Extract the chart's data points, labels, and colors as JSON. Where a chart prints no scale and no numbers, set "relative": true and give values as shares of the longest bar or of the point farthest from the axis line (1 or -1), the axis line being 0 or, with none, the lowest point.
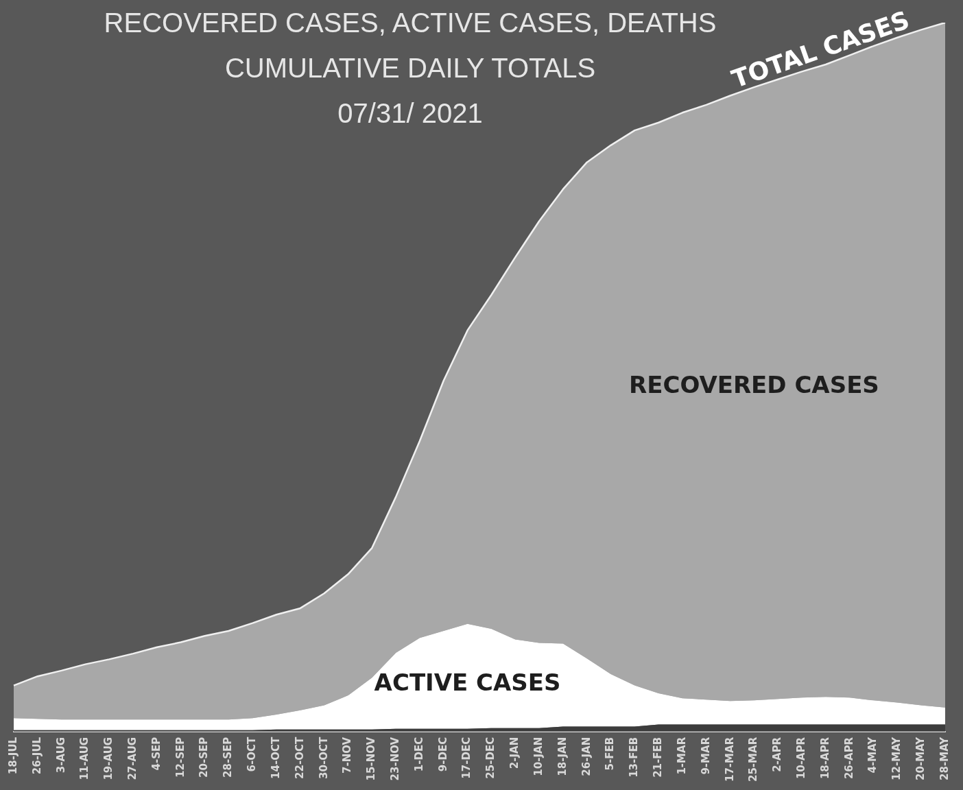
{
  "chart_data": {
    "type": "area",
    "title": "RECOVERED CASES, ACTIVE CASES, DEATHS",
    "subtitle": "CUMULATIVE DAILY TOTALS\n07/31/ 2021",
    "relative": true,
    "stacked": true,
    "grid": false,
    "legend": false,
    "categories": [
      "18-JUL",
      "26-JUL",
      "3-AUG",
      "11-AUG",
      "19-AUG",
      "27-AUG",
      "4-SEP",
      "12-SEP",
      "20-SEP",
      "28-SEP",
      "6-OCT",
      "14-OCT",
      "22-OCT",
      "30-OCT",
      "7-NOV",
      "15-NOV",
      "23-NOV",
      "1-DEC",
      "9-DEC",
      "17-DEC",
      "25-DEC",
      "2-JAN",
      "10-JAN",
      "18-JAN",
      "26-JAN",
      "5-FEB",
      "13-FEB",
      "21-FEB",
      "1-MAR",
      "9-MAR",
      "17-MAR",
      "25-MAR",
      "2-APR",
      "10-APR",
      "18-APR",
      "26-APR",
      "4-MAY",
      "12-MAY",
      "20-MAY",
      "28-MAY"
    ],
    "series": [
      {
        "color": "#3c3c3c",
        "values": [
          0.002,
          0.002,
          0.002,
          0.002,
          0.002,
          0.002,
          0.002,
          0.002,
          0.002,
          0.002,
          0.002,
          0.003,
          0.003,
          0.003,
          0.003,
          0.003,
          0.004,
          0.004,
          0.004,
          0.004,
          0.005,
          0.005,
          0.005,
          0.007,
          0.007,
          0.007,
          0.007,
          0.01,
          0.01,
          0.01,
          0.01,
          0.01,
          0.01,
          0.01,
          0.01,
          0.01,
          0.01,
          0.01,
          0.01,
          0.01
        ]
      },
      {
        "name": "ACTIVE CASES",
        "color": "#ffffff",
        "values": [
          0.017,
          0.016,
          0.015,
          0.015,
          0.015,
          0.015,
          0.015,
          0.015,
          0.015,
          0.015,
          0.017,
          0.021,
          0.027,
          0.034,
          0.048,
          0.073,
          0.107,
          0.128,
          0.138,
          0.148,
          0.14,
          0.125,
          0.12,
          0.117,
          0.096,
          0.074,
          0.058,
          0.044,
          0.037,
          0.035,
          0.033,
          0.034,
          0.036,
          0.038,
          0.039,
          0.038,
          0.034,
          0.031,
          0.027,
          0.024
        ]
      },
      {
        "name": "RECOVERED CASES",
        "color": "#a8a8a8",
        "values": [
          0.046,
          0.06,
          0.069,
          0.078,
          0.085,
          0.093,
          0.102,
          0.109,
          0.118,
          0.125,
          0.134,
          0.141,
          0.144,
          0.158,
          0.171,
          0.183,
          0.22,
          0.278,
          0.353,
          0.414,
          0.471,
          0.539,
          0.595,
          0.641,
          0.7,
          0.746,
          0.783,
          0.805,
          0.826,
          0.839,
          0.854,
          0.865,
          0.874,
          0.883,
          0.892,
          0.906,
          0.923,
          0.938,
          0.953,
          0.966
        ]
      }
    ],
    "annotations": [
      {
        "text": "TOTAL CASES",
        "x": "18-APR",
        "y": 0.941
      }
    ]
  }
}
